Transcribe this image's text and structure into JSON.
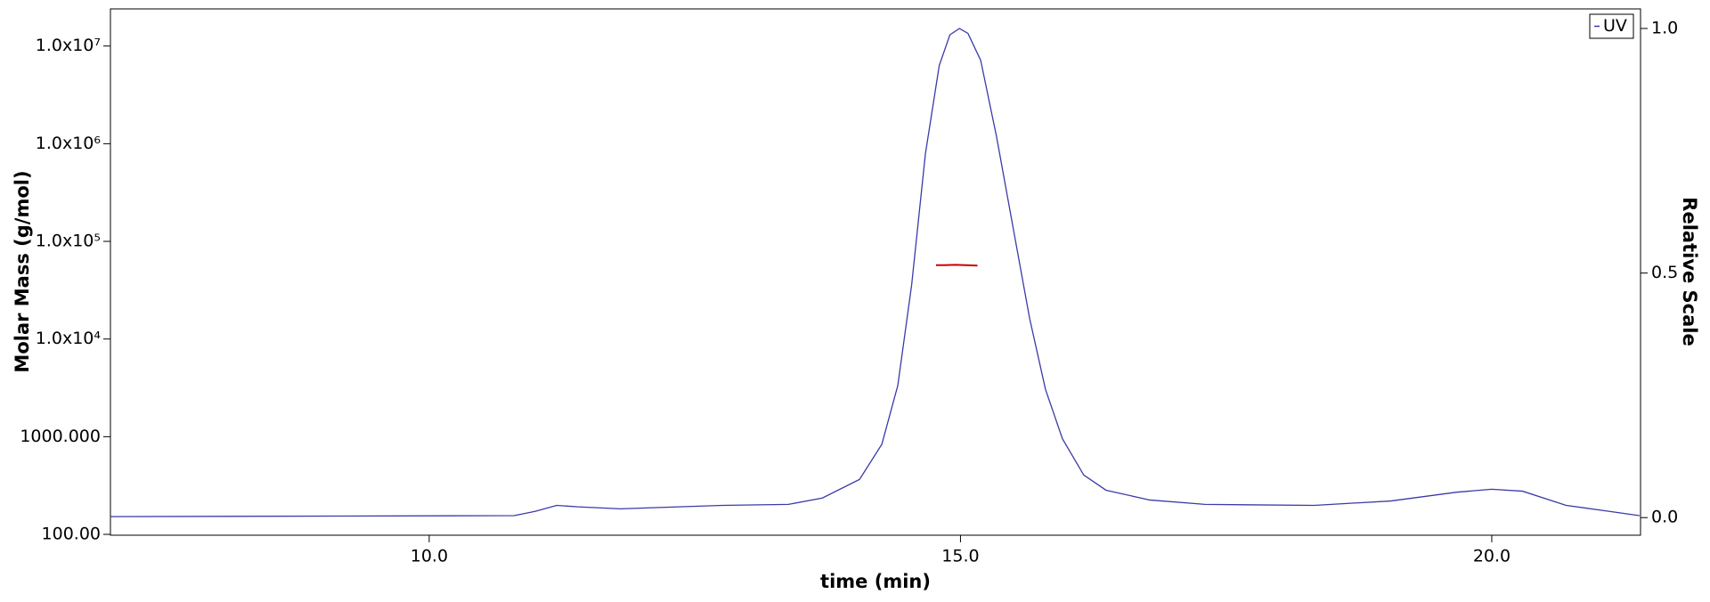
{
  "chart_data": {
    "type": "line",
    "x_label": "time (min)",
    "y_label": "Molar Mass (g/mol)",
    "y2_label": "Relative Scale",
    "xlim": [
      7.0,
      21.4
    ],
    "xticks": [
      {
        "value": 10,
        "label": "10.0"
      },
      {
        "value": 15,
        "label": "15.0"
      },
      {
        "value": 20,
        "label": "20.0"
      }
    ],
    "ylim": [
      98,
      24000000
    ],
    "y_log": true,
    "yticks": [
      {
        "value": 100,
        "label": "100.00"
      },
      {
        "value": 1000,
        "label": "1000.000"
      },
      {
        "value": 10000,
        "label": "1.0x10⁴"
      },
      {
        "value": 100000,
        "label": "1.0x10⁵"
      },
      {
        "value": 1000000,
        "label": "1.0x10⁶"
      },
      {
        "value": 10000000,
        "label": "1.0x10⁷"
      }
    ],
    "y2lim": [
      -0.036,
      1.04
    ],
    "y2ticks": [
      {
        "value": 0,
        "label": "0.0"
      },
      0.5,
      {
        "value": 1,
        "label": "1.0"
      }
    ],
    "legend_position": "upper right",
    "series": [
      {
        "name": "UV",
        "color": "#3a3aa8",
        "axis": "y2",
        "x": [
          7.0,
          10.8,
          11.0,
          11.2,
          11.4,
          11.8,
          12.35,
          12.76,
          13.38,
          13.7,
          14.05,
          14.26,
          14.41,
          14.54,
          14.67,
          14.8,
          14.9,
          14.99,
          15.07,
          15.19,
          15.34,
          15.5,
          15.65,
          15.8,
          15.96,
          16.16,
          16.37,
          16.78,
          17.3,
          18.33,
          19.05,
          19.67,
          20.0,
          20.29,
          20.7,
          21.1,
          21.39
        ],
        "values": [
          0.002,
          0.004,
          0.013,
          0.025,
          0.022,
          0.018,
          0.022,
          0.025,
          0.027,
          0.04,
          0.078,
          0.15,
          0.27,
          0.475,
          0.744,
          0.924,
          0.987,
          1.0,
          0.99,
          0.935,
          0.778,
          0.587,
          0.408,
          0.262,
          0.161,
          0.087,
          0.056,
          0.036,
          0.027,
          0.025,
          0.034,
          0.052,
          0.058,
          0.054,
          0.025,
          0.013,
          0.004
        ]
      },
      {
        "color": "#cc0000",
        "axis": "y",
        "x": [
          14.77,
          14.85,
          14.95,
          15.05,
          15.16
        ],
        "values": [
          57000,
          57000,
          57500,
          57000,
          56500
        ]
      }
    ]
  }
}
